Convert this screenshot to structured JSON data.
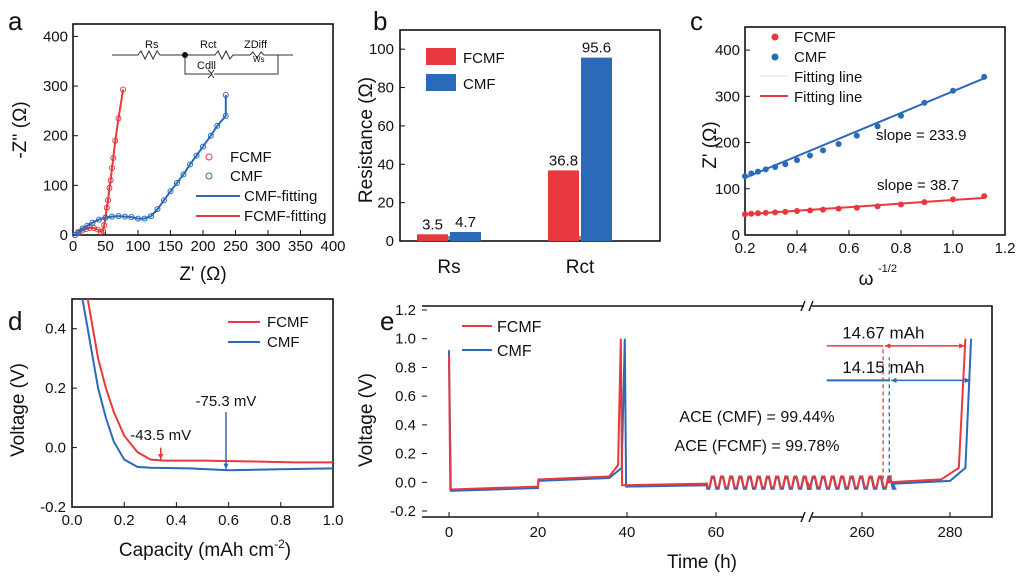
{
  "colors": {
    "fcmf": "#e8383d",
    "cmf": "#2a6ab8",
    "axis": "#111111"
  },
  "chart_data": [
    {
      "panel": "a",
      "type": "scatter",
      "xlabel": "Z' (Ω)",
      "ylabel": "-Z'' (Ω)",
      "xlim": [
        0,
        400
      ],
      "ylim": [
        0,
        425
      ],
      "xticks": [
        "0",
        "50",
        "100",
        "150",
        "200",
        "250",
        "300",
        "350",
        "400"
      ],
      "yticks": [
        "0",
        "100",
        "200",
        "300",
        "400"
      ],
      "legend": [
        "FCMF",
        "CMF",
        "CMF-fitting",
        "FCMF-fitting"
      ],
      "legend_position": "bottom-right",
      "inset_circuit": {
        "labels": [
          "Rs",
          "Rct",
          "ZDiff",
          "Cdll",
          "Ws"
        ]
      },
      "series": [
        {
          "name": "FCMF",
          "points": [
            [
              3,
              0
            ],
            [
              8,
              4
            ],
            [
              14,
              9
            ],
            [
              20,
              12
            ],
            [
              26,
              14
            ],
            [
              32,
              14
            ],
            [
              38,
              11
            ],
            [
              43,
              6
            ],
            [
              46,
              8
            ],
            [
              48,
              20
            ],
            [
              50,
              35
            ],
            [
              52,
              55
            ],
            [
              54,
              70
            ],
            [
              56,
              95
            ],
            [
              58,
              110
            ],
            [
              60,
              135
            ],
            [
              62,
              155
            ],
            [
              65,
              190
            ],
            [
              70,
              235
            ],
            [
              77,
              293
            ]
          ]
        },
        {
          "name": "CMF",
          "points": [
            [
              3,
              0
            ],
            [
              8,
              6
            ],
            [
              15,
              13
            ],
            [
              22,
              19
            ],
            [
              30,
              25
            ],
            [
              40,
              31
            ],
            [
              50,
              35
            ],
            [
              60,
              37
            ],
            [
              70,
              38
            ],
            [
              80,
              37
            ],
            [
              90,
              36
            ],
            [
              100,
              33
            ],
            [
              110,
              33
            ],
            [
              120,
              38
            ],
            [
              130,
              52
            ],
            [
              140,
              70
            ],
            [
              150,
              88
            ],
            [
              160,
              105
            ],
            [
              170,
              122
            ],
            [
              180,
              142
            ],
            [
              190,
              160
            ],
            [
              200,
              178
            ],
            [
              212,
              200
            ],
            [
              222,
              220
            ],
            [
              235,
              240
            ],
            [
              235,
              282
            ]
          ]
        }
      ]
    },
    {
      "panel": "b",
      "type": "bar",
      "categories": [
        "Rs",
        "Rct"
      ],
      "ylabel": "Resistance (Ω)",
      "ylim": [
        0,
        110
      ],
      "yticks": [
        "0",
        "20",
        "40",
        "60",
        "80",
        "100"
      ],
      "legend_position": "top-left",
      "series": [
        {
          "name": "FCMF",
          "values": [
            3.5,
            36.8
          ],
          "labels": [
            "3.5",
            "36.8"
          ]
        },
        {
          "name": "CMF",
          "values": [
            4.7,
            95.6
          ],
          "labels": [
            "4.7",
            "95.6"
          ]
        }
      ]
    },
    {
      "panel": "c",
      "type": "scatter",
      "xlabel": "ω",
      "xlabel_sup": "-1/2",
      "ylabel": "Z' (Ω)",
      "xlim": [
        0.2,
        1.2
      ],
      "ylim": [
        0,
        450
      ],
      "xticks": [
        "0.2",
        "0.4",
        "0.6",
        "0.8",
        "1.0",
        "1.2"
      ],
      "yticks": [
        "0",
        "100",
        "200",
        "300",
        "400"
      ],
      "legend": [
        "FCMF",
        "CMF",
        "Fitting line",
        "Fitting line"
      ],
      "legend_position": "top-left",
      "x": [
        0.2,
        0.224,
        0.25,
        0.28,
        0.316,
        0.355,
        0.4,
        0.45,
        0.5,
        0.56,
        0.63,
        0.71,
        0.8,
        0.89,
        1.0,
        1.12
      ],
      "series": [
        {
          "name": "FCMF",
          "values": [
            45,
            46,
            47,
            48,
            49,
            50,
            52,
            53,
            55,
            57,
            59,
            62,
            66,
            71,
            77,
            84
          ],
          "fit": {
            "slope": 38.7,
            "intercept": 37
          }
        },
        {
          "name": "CMF",
          "values": [
            127,
            133,
            137,
            142,
            147,
            153,
            162,
            172,
            183,
            197,
            215,
            235,
            258,
            286,
            312,
            342
          ],
          "fit": {
            "slope": 233.9,
            "intercept": 77
          }
        }
      ],
      "annotations": [
        "slope = 233.9",
        "slope = 38.7"
      ]
    },
    {
      "panel": "d",
      "type": "line",
      "xlabel": "Capacity (mAh cm",
      "xlabel_sup": "-2",
      "xlabel_end": ")",
      "ylabel": "Voltage (V)",
      "xlim": [
        0,
        1
      ],
      "ylim": [
        -0.2,
        0.5
      ],
      "xticks": [
        "0.0",
        "0.2",
        "0.4",
        "0.6",
        "0.8",
        "1.0"
      ],
      "yticks": [
        "-0.2",
        "0.0",
        "0.2",
        "0.4"
      ],
      "legend_position": "top-right",
      "series": [
        {
          "name": "FCMF",
          "points": [
            [
              0.06,
              0.5
            ],
            [
              0.08,
              0.4
            ],
            [
              0.1,
              0.3
            ],
            [
              0.13,
              0.2
            ],
            [
              0.16,
              0.12
            ],
            [
              0.2,
              0.04
            ],
            [
              0.25,
              -0.015
            ],
            [
              0.3,
              -0.04
            ],
            [
              0.35,
              -0.044
            ],
            [
              0.5,
              -0.044
            ],
            [
              0.7,
              -0.047
            ],
            [
              0.85,
              -0.05
            ],
            [
              1.0,
              -0.05
            ]
          ]
        },
        {
          "name": "CMF",
          "points": [
            [
              0.04,
              0.5
            ],
            [
              0.06,
              0.4
            ],
            [
              0.08,
              0.3
            ],
            [
              0.1,
              0.2
            ],
            [
              0.13,
              0.1
            ],
            [
              0.16,
              0.02
            ],
            [
              0.2,
              -0.04
            ],
            [
              0.25,
              -0.065
            ],
            [
              0.3,
              -0.068
            ],
            [
              0.45,
              -0.07
            ],
            [
              0.6,
              -0.076
            ],
            [
              0.8,
              -0.073
            ],
            [
              1.0,
              -0.07
            ]
          ]
        }
      ],
      "annotations": [
        {
          "text": "-43.5 mV",
          "x": 0.34,
          "y": -0.0435
        },
        {
          "text": "-75.3 mV",
          "x": 0.59,
          "y": -0.0753
        }
      ]
    },
    {
      "panel": "e",
      "type": "line",
      "xlabel": "Time (h)",
      "ylabel": "Voltage (V)",
      "xlim_segments": [
        [
          -6,
          80.7
        ],
        [
          247.7,
          293
        ]
      ],
      "ylim": [
        -0.2,
        1.2
      ],
      "xticks": [
        "0",
        "20",
        "40",
        "60",
        "260",
        "280"
      ],
      "yticks": [
        "-0.2",
        "0.0",
        "0.2",
        "0.4",
        "0.6",
        "0.8",
        "1.0",
        "1.2"
      ],
      "legend_position": "top-left",
      "series": [
        {
          "name": "FCMF",
          "points": [
            [
              0,
              0.88
            ],
            [
              0.3,
              -0.05
            ],
            [
              20,
              -0.03
            ],
            [
              20.1,
              0.02
            ],
            [
              36,
              0.04
            ],
            [
              38,
              0.12
            ],
            [
              38.6,
              1.0
            ],
            [
              38.9,
              -0.02
            ],
            [
              58,
              -0.01
            ],
            [
              80.7,
              -0.01
            ],
            [
              247.7,
              0.0
            ],
            [
              266,
              0.0
            ],
            [
              278,
              0.02
            ],
            [
              282,
              0.1
            ],
            [
              283.5,
              1.0
            ]
          ],
          "cycling_hours": [
            [
              58,
              80.7
            ],
            [
              247.7,
              266
            ]
          ]
        },
        {
          "name": "CMF",
          "points": [
            [
              0,
              0.92
            ],
            [
              0.4,
              -0.06
            ],
            [
              20,
              -0.04
            ],
            [
              20.1,
              0.01
            ],
            [
              36,
              0.03
            ],
            [
              38.8,
              0.1
            ],
            [
              39.5,
              1.0
            ],
            [
              39.8,
              -0.03
            ],
            [
              58,
              -0.02
            ],
            [
              80.7,
              -0.02
            ],
            [
              247.7,
              -0.01
            ],
            [
              267,
              -0.01
            ],
            [
              280,
              0.01
            ],
            [
              283.5,
              0.1
            ],
            [
              284.8,
              1.0
            ]
          ],
          "cycling_hours": [
            [
              58,
              80.7
            ],
            [
              247.7,
              267
            ]
          ]
        }
      ],
      "annotations": [
        "14.67 mAh",
        "14.15 mAh",
        "ACE (CMF) = 99.44%",
        "ACE (FCMF) = 99.78%"
      ]
    }
  ],
  "panel_labels": [
    "a",
    "b",
    "c",
    "d",
    "e"
  ]
}
